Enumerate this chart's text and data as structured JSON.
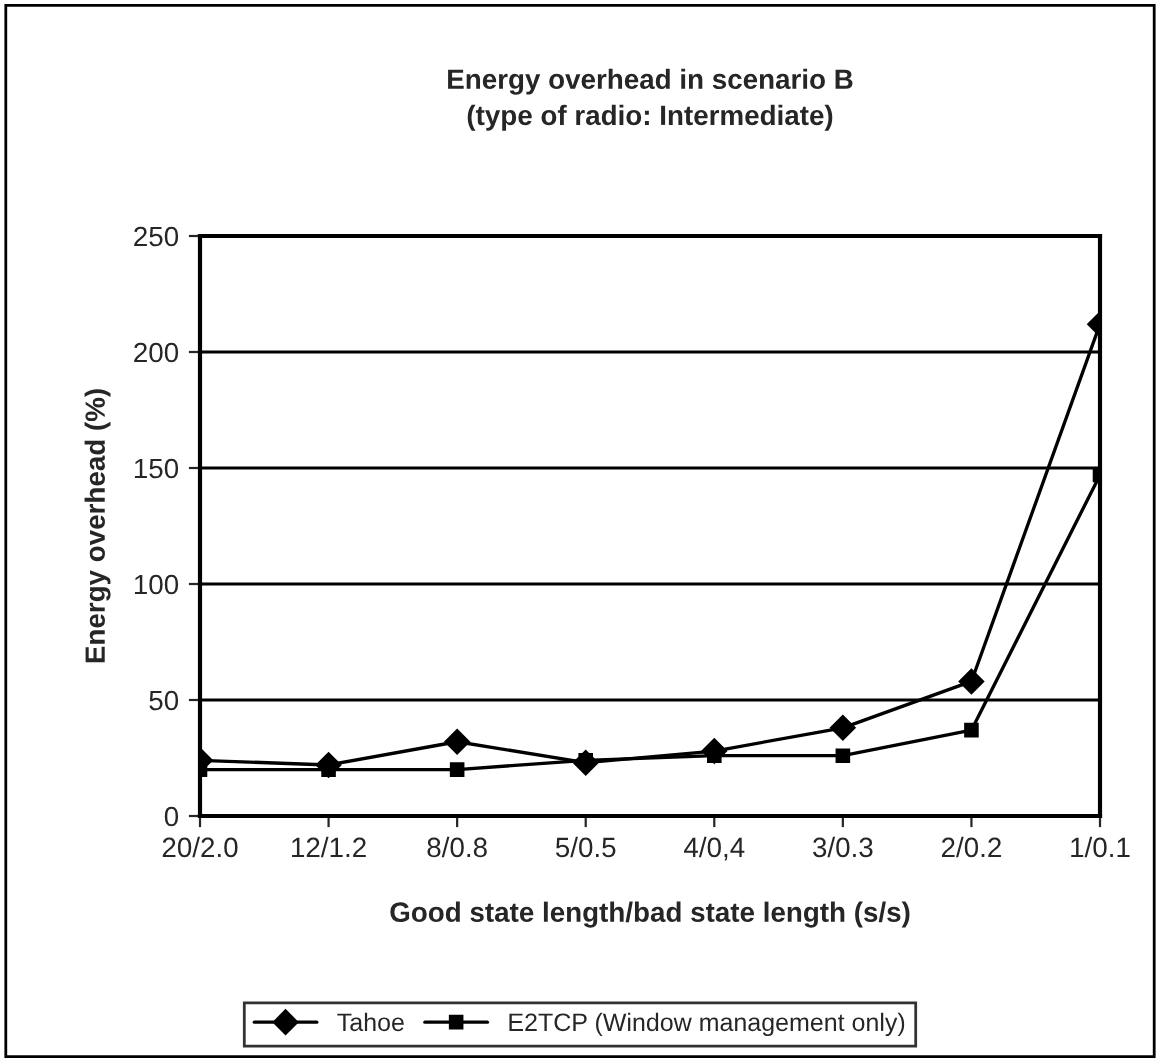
{
  "chart_data": {
    "type": "line",
    "title": "Energy overhead in scenario B\n(type of radio: Intermediate)",
    "xlabel": "Good state length/bad state length (s/s)",
    "ylabel": "Energy overhead (%)",
    "categories": [
      "20/2.0",
      "12/1.2",
      "8/0.8",
      "5/0.5",
      "4/0,4",
      "3/0.3",
      "2/0.2",
      "1/0.1"
    ],
    "series": [
      {
        "name": "Tahoe",
        "color": "#000000",
        "marker": "diamond",
        "values": [
          24,
          22,
          32,
          23,
          28,
          38,
          58,
          212
        ]
      },
      {
        "name": "E2TCP (Window management only)",
        "color": "#000000",
        "marker": "square",
        "values": [
          20,
          20,
          20,
          24,
          26,
          26,
          37,
          147
        ]
      }
    ],
    "ylim": [
      0,
      250
    ],
    "yticks": [
      0,
      50,
      100,
      150,
      200,
      250
    ],
    "grid": "y",
    "legend": "bottom",
    "line_style": "solid"
  }
}
